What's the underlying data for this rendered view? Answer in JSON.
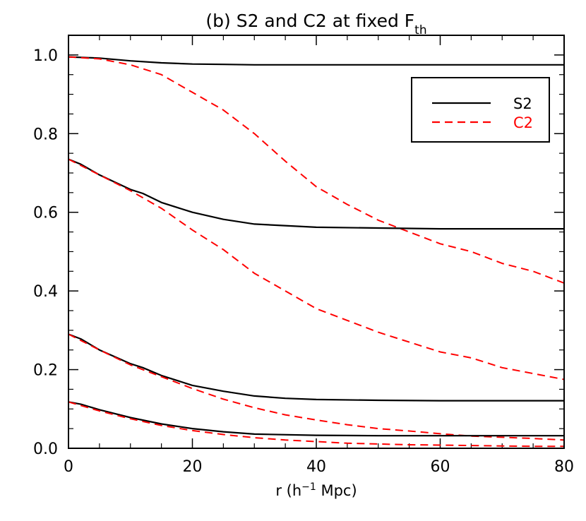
{
  "chart_data": {
    "type": "line",
    "title": "(b) S2 and C2 at fixed F",
    "title_subscript": "th",
    "xlabel": "r (h",
    "xlabel_sup": "−1",
    "xlabel_tail": " Mpc)",
    "ylabel": "",
    "xlim": [
      0,
      80
    ],
    "ylim": [
      0,
      1.05
    ],
    "xticks": [
      0,
      20,
      40,
      60,
      80
    ],
    "xtick_labels": [
      "0",
      "20",
      "40",
      "60",
      "80"
    ],
    "yticks": [
      0.0,
      0.2,
      0.4,
      0.6,
      0.8,
      1.0
    ],
    "ytick_labels": [
      "0.0",
      "0.2",
      "0.4",
      "0.6",
      "0.8",
      "1.0"
    ],
    "grid": false,
    "legend": {
      "position": "top-right",
      "entries": [
        {
          "label": "S2",
          "color": "#000000",
          "dash": "solid"
        },
        {
          "label": "C2",
          "color": "#ff0000",
          "dash": "dashed"
        }
      ]
    },
    "series": [
      {
        "group": "S2",
        "color": "#000000",
        "dash": "solid",
        "x": [
          0,
          5,
          10,
          15,
          20,
          25,
          30,
          40,
          50,
          60,
          70,
          80
        ],
        "y": [
          0.995,
          0.992,
          0.985,
          0.98,
          0.977,
          0.976,
          0.975,
          0.975,
          0.975,
          0.975,
          0.975,
          0.975
        ]
      },
      {
        "group": "C2",
        "color": "#ff0000",
        "dash": "dashed",
        "x": [
          0,
          5,
          10,
          15,
          20,
          25,
          30,
          35,
          40,
          45,
          50,
          55,
          60,
          65,
          70,
          75,
          80
        ],
        "y": [
          0.995,
          0.99,
          0.975,
          0.95,
          0.905,
          0.86,
          0.8,
          0.73,
          0.665,
          0.62,
          0.58,
          0.55,
          0.52,
          0.5,
          0.47,
          0.45,
          0.42
        ]
      },
      {
        "group": "S2",
        "color": "#000000",
        "dash": "solid",
        "x": [
          0,
          2,
          5,
          10,
          12,
          15,
          20,
          25,
          30,
          40,
          50,
          60,
          70,
          80
        ],
        "y": [
          0.735,
          0.722,
          0.695,
          0.658,
          0.648,
          0.625,
          0.6,
          0.582,
          0.57,
          0.562,
          0.56,
          0.558,
          0.558,
          0.558
        ]
      },
      {
        "group": "C2",
        "color": "#ff0000",
        "dash": "dashed",
        "x": [
          0,
          5,
          10,
          15,
          20,
          25,
          30,
          35,
          40,
          45,
          50,
          55,
          60,
          65,
          70,
          75,
          80
        ],
        "y": [
          0.735,
          0.695,
          0.655,
          0.61,
          0.555,
          0.505,
          0.445,
          0.4,
          0.355,
          0.325,
          0.295,
          0.27,
          0.245,
          0.23,
          0.205,
          0.19,
          0.175
        ]
      },
      {
        "group": "S2",
        "color": "#000000",
        "dash": "solid",
        "x": [
          0,
          2,
          5,
          10,
          12,
          15,
          20,
          25,
          30,
          35,
          40,
          50,
          60,
          70,
          80
        ],
        "y": [
          0.29,
          0.278,
          0.25,
          0.215,
          0.205,
          0.185,
          0.16,
          0.145,
          0.133,
          0.127,
          0.124,
          0.122,
          0.121,
          0.121,
          0.121
        ]
      },
      {
        "group": "C2",
        "color": "#ff0000",
        "dash": "dashed",
        "x": [
          0,
          5,
          10,
          15,
          20,
          25,
          30,
          35,
          40,
          45,
          50,
          55,
          60,
          65,
          70,
          75,
          80
        ],
        "y": [
          0.29,
          0.25,
          0.212,
          0.182,
          0.152,
          0.125,
          0.103,
          0.085,
          0.072,
          0.06,
          0.05,
          0.044,
          0.037,
          0.031,
          0.028,
          0.025,
          0.021
        ]
      },
      {
        "group": "S2",
        "color": "#000000",
        "dash": "solid",
        "x": [
          0,
          2,
          5,
          10,
          15,
          20,
          25,
          30,
          40,
          50,
          60,
          70,
          80
        ],
        "y": [
          0.118,
          0.112,
          0.098,
          0.078,
          0.062,
          0.05,
          0.042,
          0.036,
          0.033,
          0.032,
          0.032,
          0.032,
          0.032
        ]
      },
      {
        "group": "C2",
        "color": "#ff0000",
        "dash": "dashed",
        "x": [
          0,
          5,
          10,
          15,
          20,
          25,
          30,
          35,
          40,
          45,
          50,
          55,
          60,
          65,
          70,
          75,
          80
        ],
        "y": [
          0.118,
          0.095,
          0.075,
          0.058,
          0.045,
          0.035,
          0.027,
          0.021,
          0.017,
          0.013,
          0.011,
          0.009,
          0.008,
          0.007,
          0.006,
          0.005,
          0.005
        ]
      }
    ]
  }
}
